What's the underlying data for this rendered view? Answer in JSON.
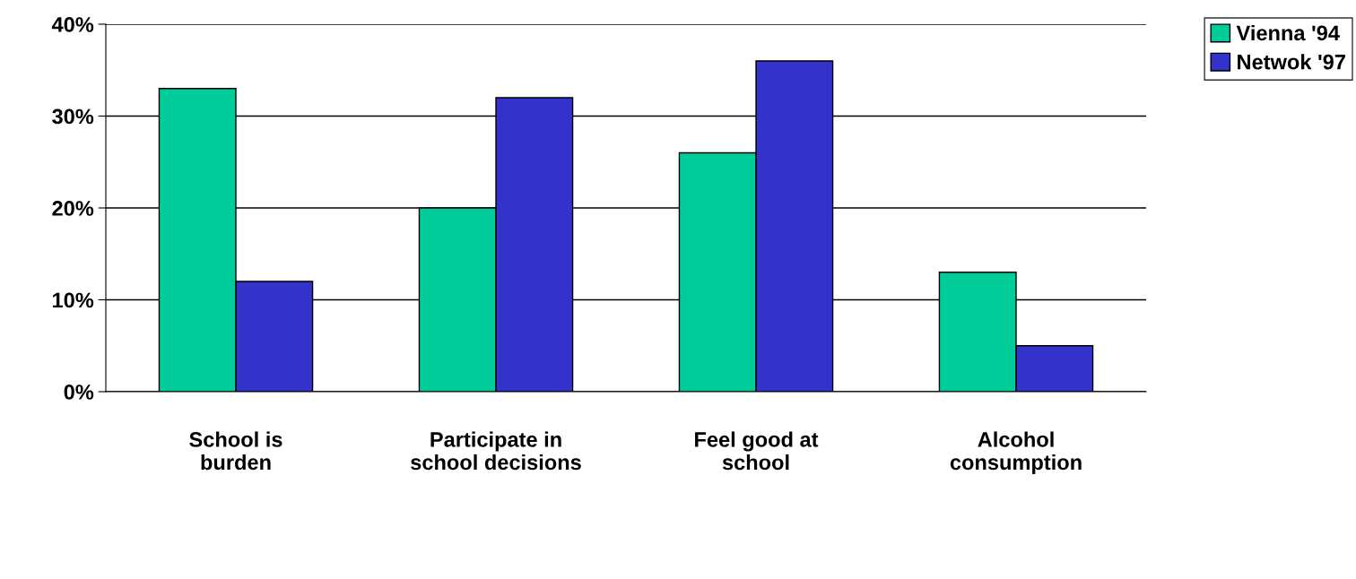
{
  "chart_data": {
    "type": "bar",
    "categories": [
      "School is\nburden",
      "Participate in\nschool decisions",
      "Feel good at\nschool",
      "Alcohol\nconsumption"
    ],
    "series": [
      {
        "name": "Vienna '94",
        "color": "#00cc99",
        "values": [
          33,
          20,
          26,
          13
        ]
      },
      {
        "name": "Netwok '97",
        "color": "#3333cc",
        "values": [
          12,
          32,
          36,
          5
        ]
      }
    ],
    "ylim": [
      0,
      40
    ],
    "yticks": [
      {
        "value": 0,
        "label": "0%"
      },
      {
        "value": 10,
        "label": "10%"
      },
      {
        "value": 20,
        "label": "20%"
      },
      {
        "value": 30,
        "label": "30%"
      },
      {
        "value": 40,
        "label": "40%"
      }
    ],
    "grid": "y",
    "legend": "top right"
  }
}
